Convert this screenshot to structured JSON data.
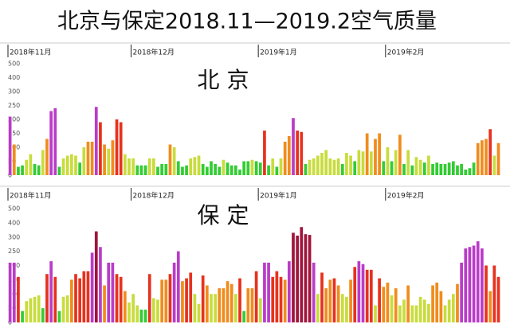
{
  "header": {
    "title": "北京与保定2018.11—2019.2空气质量"
  },
  "chart_data": [
    {
      "type": "bar",
      "title": "北 京",
      "ylim": [
        0,
        500
      ],
      "yticks": [
        0,
        50,
        100,
        150,
        200,
        250,
        300,
        400,
        500
      ],
      "level_colors": [
        "#33cc33",
        "#c8dc3c",
        "#f08c1e",
        "#e6321e",
        "#b93cc8",
        "#a0143c"
      ],
      "months": [
        {
          "label": "2018年11月",
          "values": [
            210,
            110,
            30,
            35,
            55,
            75,
            40,
            35,
            90,
            130,
            230,
            240,
            30,
            60,
            70,
            75,
            70,
            45,
            100,
            120,
            120,
            245,
            190,
            110,
            95,
            125,
            200,
            190,
            75,
            60
          ]
        },
        {
          "label": "2018年12月",
          "values": [
            60,
            35,
            35,
            35,
            60,
            60,
            30,
            40,
            40,
            110,
            100,
            50,
            30,
            35,
            60,
            65,
            70,
            40,
            30,
            50,
            40,
            30,
            55,
            45,
            35,
            35,
            20,
            50,
            50,
            55,
            50
          ]
        },
        {
          "label": "2019年1月",
          "values": [
            45,
            160,
            35,
            60,
            30,
            60,
            120,
            140,
            205,
            160,
            155,
            40,
            55,
            60,
            70,
            80,
            90,
            60,
            55,
            60,
            40,
            80,
            70,
            50,
            90,
            85,
            150,
            85,
            130,
            150,
            50
          ]
        },
        {
          "label": "2019年2月",
          "values": [
            100,
            50,
            90,
            145,
            40,
            90,
            35,
            65,
            55,
            45,
            70,
            40,
            45,
            40,
            40,
            45,
            50,
            35,
            40,
            20,
            25,
            45,
            115,
            125,
            130,
            165,
            70,
            115
          ]
        }
      ]
    },
    {
      "type": "bar",
      "title": "保 定",
      "ylim": [
        0,
        500
      ],
      "yticks": [
        0,
        50,
        100,
        150,
        200,
        250,
        300,
        400,
        500
      ],
      "level_colors": [
        "#33cc33",
        "#c8dc3c",
        "#f08c1e",
        "#e6321e",
        "#b93cc8",
        "#a0143c"
      ],
      "months": [
        {
          "label": "2018年11月",
          "values": [
            210,
            210,
            160,
            40,
            75,
            85,
            90,
            95,
            50,
            170,
            215,
            160,
            40,
            90,
            95,
            150,
            170,
            155,
            180,
            180,
            245,
            340,
            265,
            130,
            210,
            210,
            170,
            160,
            110,
            70
          ]
        },
        {
          "label": "2018年12月",
          "values": [
            100,
            60,
            45,
            45,
            170,
            85,
            80,
            150,
            150,
            170,
            210,
            250,
            145,
            155,
            175,
            100,
            65,
            165,
            130,
            100,
            100,
            120,
            120,
            145,
            135,
            100,
            155,
            40,
            120,
            120,
            180
          ]
        },
        {
          "label": "2019年1月",
          "values": [
            85,
            210,
            210,
            160,
            180,
            160,
            150,
            215,
            330,
            310,
            370,
            320,
            315,
            210,
            100,
            175,
            120,
            150,
            155,
            130,
            100,
            90,
            150,
            195,
            215,
            205,
            185,
            185,
            60,
            155,
            125
          ]
        },
        {
          "label": "2019年2月",
          "values": [
            140,
            95,
            120,
            60,
            80,
            130,
            60,
            60,
            90,
            80,
            65,
            130,
            140,
            110,
            60,
            80,
            100,
            135,
            210,
            260,
            265,
            270,
            285,
            260,
            200,
            110,
            200,
            160
          ]
        }
      ]
    }
  ]
}
